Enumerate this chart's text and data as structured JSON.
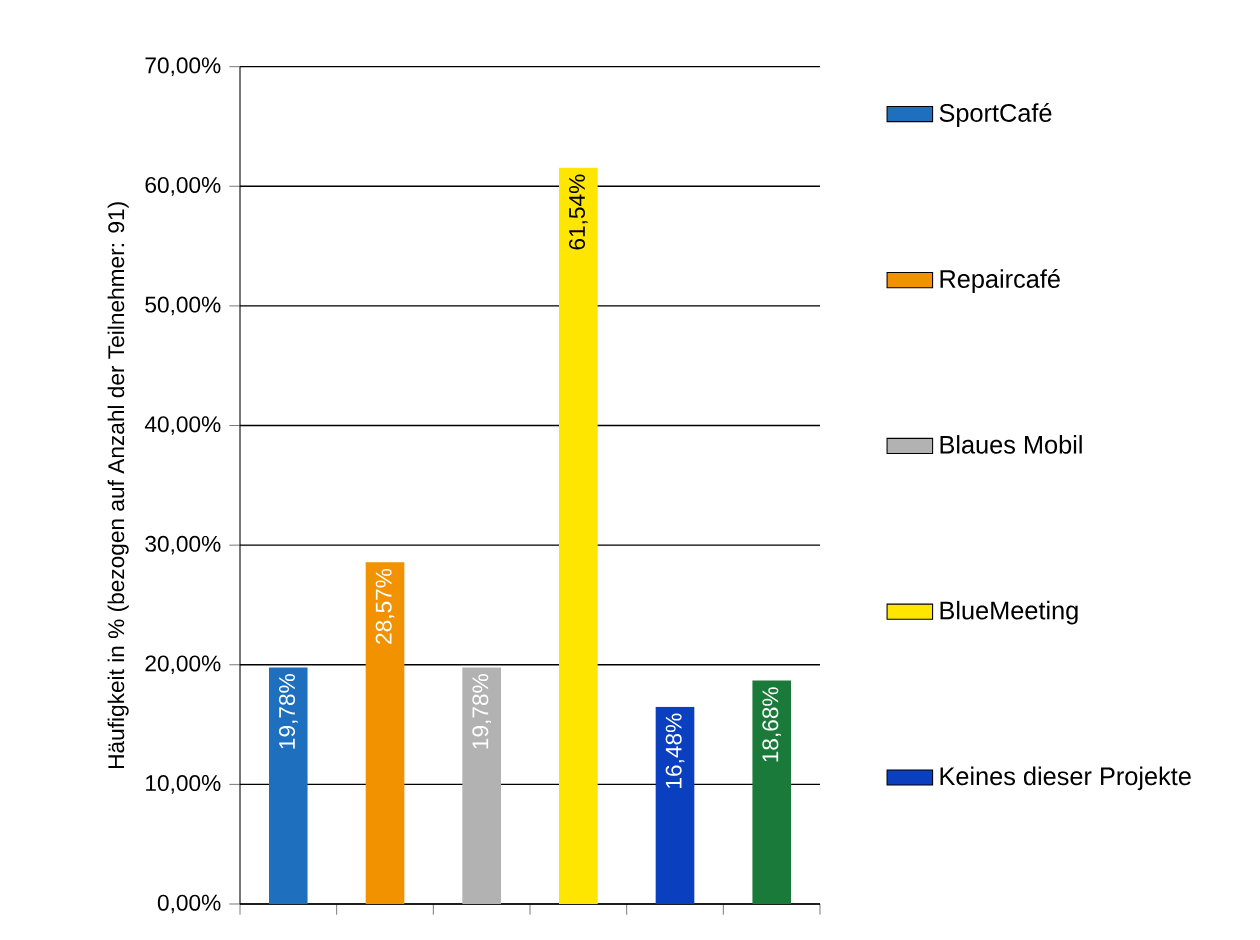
{
  "chart_data": {
    "type": "bar",
    "ylabel": "Häufigkeit in % (bezogen auf Anzahl  der Teilnehmer: 91)",
    "categories": [
      null,
      null,
      null,
      null,
      null,
      null
    ],
    "series": [
      {
        "name": "SportCafé",
        "color": "#1f6fbf",
        "values": [
          19.78,
          null,
          null,
          null,
          null,
          null
        ],
        "value_labels": [
          "19,78%",
          null,
          null,
          null,
          null,
          null
        ]
      },
      {
        "name": "Repaircafé",
        "color": "#f39200",
        "values": [
          null,
          28.57,
          null,
          null,
          null,
          null
        ],
        "value_labels": [
          null,
          "28,57%",
          null,
          null,
          null,
          null
        ]
      },
      {
        "name": "Blaues Mobil",
        "color": "#b2b2b2",
        "values": [
          null,
          null,
          19.78,
          null,
          null,
          null
        ],
        "value_labels": [
          null,
          null,
          "19,78%",
          null,
          null,
          null
        ]
      },
      {
        "name": "BlueMeeting",
        "color": "#ffe600",
        "values": [
          null,
          null,
          null,
          61.54,
          null,
          null
        ],
        "value_labels": [
          null,
          null,
          null,
          "61,54%",
          null,
          null
        ]
      },
      {
        "name": "Keines dieser Projekte",
        "color": "#0a3fbf",
        "values": [
          null,
          null,
          null,
          null,
          16.48,
          null
        ],
        "value_labels": [
          null,
          null,
          null,
          null,
          "16,48%",
          null
        ]
      },
      {
        "color": "#1a7a3a",
        "values": [
          null,
          null,
          null,
          null,
          null,
          18.68
        ],
        "value_labels": [
          null,
          null,
          null,
          null,
          null,
          "18,68%"
        ]
      }
    ],
    "ylim": [
      0,
      70
    ],
    "yticks": [
      {
        "value": 0,
        "label": "0,00%"
      },
      {
        "value": 10,
        "label": "10,00%"
      },
      {
        "value": 20,
        "label": "20,00%"
      },
      {
        "value": 30,
        "label": "30,00%"
      },
      {
        "value": 40,
        "label": "40,00%"
      },
      {
        "value": 50,
        "label": "50,00%"
      },
      {
        "value": 60,
        "label": "60,00%"
      },
      {
        "value": 70,
        "label": "70,00%"
      }
    ],
    "grid": "y",
    "legend": "right"
  }
}
